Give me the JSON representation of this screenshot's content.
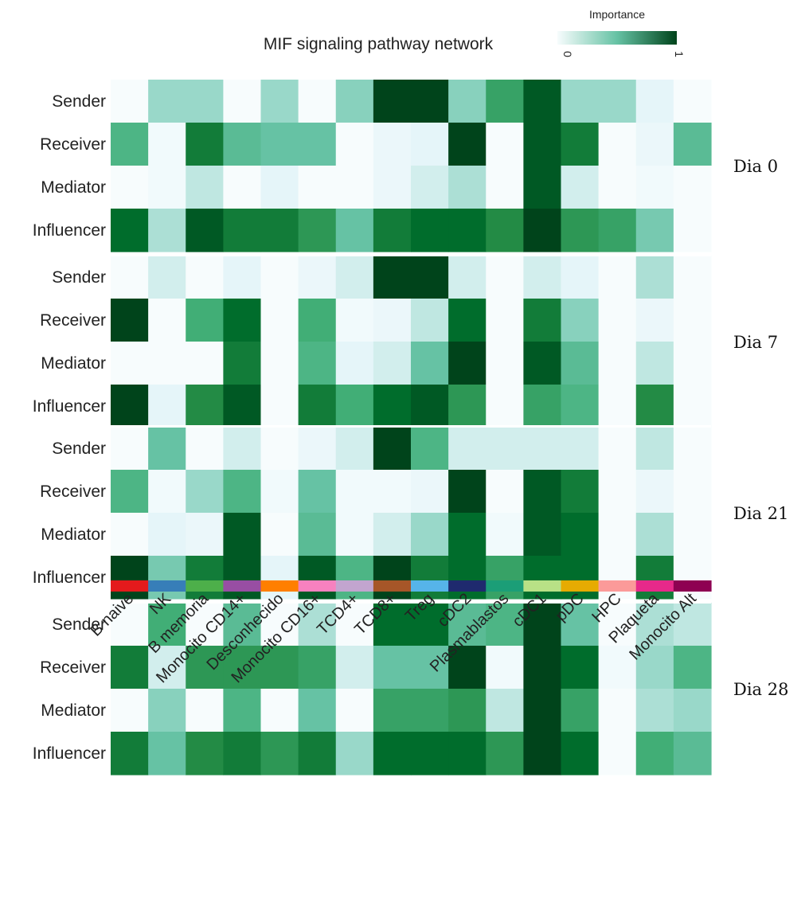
{
  "chart_data": {
    "type": "heatmap",
    "title": "MIF signaling pathway network",
    "legend": {
      "title": "Importance",
      "min_label": "0",
      "max_label": "1",
      "low_color": "#f7fcfd",
      "high_color": "#00441b",
      "placement": "top-right"
    },
    "columns": [
      "B naive",
      "NK",
      "B memoria",
      "Monocito CD14+",
      "Desconhecido",
      "Monocito CD16+",
      "TCD4+",
      "TCD8+",
      "Treg",
      "cDC2",
      "Plasmablastos",
      "cDC1",
      "pDC",
      "HPC",
      "Plaqueta",
      "Monocito Alt"
    ],
    "column_colors": [
      "#e41a1c",
      "#377eb8",
      "#4daf4a",
      "#984ea3",
      "#ff7f00",
      "#f781bf",
      "#c2a5cf",
      "#a65628",
      "#56b4e9",
      "#1f2a6e",
      "#1b9e77",
      "#b8e186",
      "#e6ab02",
      "#fb9a99",
      "#e7298a",
      "#8e0152"
    ],
    "groups": [
      {
        "name": "Dia 0",
        "rows": [
          {
            "label": "Sender",
            "values": [
              0,
              0.35,
              0.35,
              0,
              0.35,
              0,
              0.4,
              1,
              1,
              0.4,
              0.7,
              0.95,
              0.35,
              0.35,
              0.15,
              0
            ]
          },
          {
            "label": "Receiver",
            "values": [
              0.6,
              0.05,
              0.85,
              0.55,
              0.5,
              0.5,
              0,
              0.1,
              0.15,
              1,
              0,
              0.95,
              0.85,
              0,
              0.1,
              0.55
            ]
          },
          {
            "label": "Mediator",
            "values": [
              0,
              0.05,
              0.25,
              0,
              0.15,
              0,
              0,
              0.1,
              0.2,
              0.3,
              0,
              0.95,
              0.2,
              0,
              0.05,
              0
            ]
          },
          {
            "label": "Influencer",
            "values": [
              0.9,
              0.3,
              0.95,
              0.85,
              0.85,
              0.75,
              0.5,
              0.85,
              0.9,
              0.9,
              0.8,
              1,
              0.75,
              0.7,
              0.45,
              0
            ]
          }
        ]
      },
      {
        "name": "Dia 7",
        "rows": [
          {
            "label": "Sender",
            "values": [
              0,
              0.2,
              0,
              0.15,
              0,
              0.1,
              0.2,
              1,
              1,
              0.2,
              0,
              0.2,
              0.15,
              0,
              0.3,
              0
            ]
          },
          {
            "label": "Receiver",
            "values": [
              1,
              0,
              0.65,
              0.9,
              0,
              0.65,
              0.05,
              0.1,
              0.25,
              0.9,
              0,
              0.85,
              0.4,
              0,
              0.1,
              0
            ]
          },
          {
            "label": "Mediator",
            "values": [
              0,
              0,
              0,
              0.85,
              0,
              0.6,
              0.15,
              0.2,
              0.5,
              1,
              0,
              0.95,
              0.55,
              0,
              0.25,
              0
            ]
          },
          {
            "label": "Influencer",
            "values": [
              1,
              0.15,
              0.8,
              0.95,
              0,
              0.85,
              0.65,
              0.9,
              0.95,
              0.75,
              0,
              0.7,
              0.6,
              0,
              0.8,
              0
            ]
          }
        ]
      },
      {
        "name": "Dia 21",
        "rows": [
          {
            "label": "Sender",
            "values": [
              0,
              0.5,
              0,
              0.2,
              0,
              0.1,
              0.2,
              1,
              0.6,
              0.2,
              0.2,
              0.2,
              0.2,
              0,
              0.25,
              0
            ]
          },
          {
            "label": "Receiver",
            "values": [
              0.6,
              0.05,
              0.35,
              0.6,
              0.05,
              0.5,
              0.05,
              0.05,
              0.1,
              1,
              0,
              0.95,
              0.85,
              0,
              0.1,
              0
            ]
          },
          {
            "label": "Mediator",
            "values": [
              0,
              0.15,
              0.1,
              0.95,
              0,
              0.55,
              0.05,
              0.2,
              0.35,
              0.9,
              0.05,
              0.95,
              0.9,
              0,
              0.3,
              0
            ]
          },
          {
            "label": "Influencer",
            "values": [
              1,
              0.45,
              0.85,
              0.95,
              0.15,
              0.95,
              0.6,
              1,
              0.85,
              0.9,
              0.7,
              0.9,
              0.9,
              0,
              0.85,
              0
            ]
          }
        ]
      },
      {
        "name": "Dia 28",
        "rows": [
          {
            "label": "Sender",
            "values": [
              0,
              0.65,
              0,
              0.55,
              0,
              0.3,
              0,
              0.9,
              0.9,
              0.55,
              0.6,
              1,
              0.5,
              0,
              0.3,
              0.25
            ]
          },
          {
            "label": "Receiver",
            "values": [
              0.85,
              0.2,
              0.75,
              0.75,
              0.75,
              0.7,
              0.2,
              0.5,
              0.5,
              1,
              0.05,
              1,
              0.9,
              0.05,
              0.35,
              0.6
            ]
          },
          {
            "label": "Mediator",
            "values": [
              0,
              0.4,
              0,
              0.6,
              0,
              0.5,
              0,
              0.7,
              0.7,
              0.75,
              0.25,
              1,
              0.7,
              0,
              0.3,
              0.35
            ]
          },
          {
            "label": "Influencer",
            "values": [
              0.85,
              0.5,
              0.8,
              0.85,
              0.75,
              0.85,
              0.35,
              0.9,
              0.9,
              0.9,
              0.75,
              1,
              0.9,
              0,
              0.65,
              0.55
            ]
          }
        ]
      }
    ]
  }
}
